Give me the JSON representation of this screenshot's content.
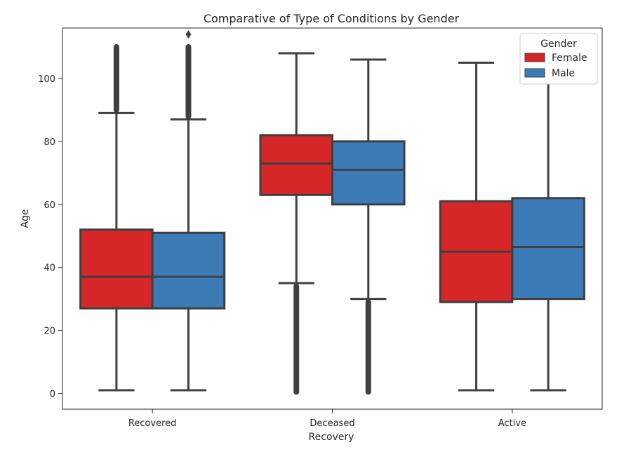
{
  "chart_data": {
    "type": "box",
    "title": "Comparative of Type of Conditions by Gender",
    "xlabel": "Recovery",
    "ylabel": "Age",
    "categories": [
      "Recovered",
      "Deceased",
      "Active"
    ],
    "ylim": [
      -5,
      116
    ],
    "yticks": [
      0,
      20,
      40,
      60,
      80,
      100
    ],
    "grid": false,
    "legend": {
      "title": "Gender",
      "placement": "top-right"
    },
    "series": [
      {
        "name": "Female",
        "color": "#d62628",
        "boxes": [
          {
            "category": "Recovered",
            "whisker_low": 1,
            "q1": 27,
            "median": 37,
            "q3": 52,
            "whisker_high": 89,
            "outliers_high": [
              90,
              110
            ]
          },
          {
            "category": "Deceased",
            "whisker_low": 35,
            "q1": 63,
            "median": 73,
            "q3": 82,
            "whisker_high": 108,
            "outliers_low": [
              0.5,
              34
            ]
          },
          {
            "category": "Active",
            "whisker_low": 1,
            "q1": 29,
            "median": 45,
            "q3": 61,
            "whisker_high": 105
          }
        ]
      },
      {
        "name": "Male",
        "color": "#3b7cb8",
        "boxes": [
          {
            "category": "Recovered",
            "whisker_low": 1,
            "q1": 27,
            "median": 37,
            "q3": 51,
            "whisker_high": 87,
            "outliers_high": [
              88,
              110,
              114
            ]
          },
          {
            "category": "Deceased",
            "whisker_low": 30,
            "q1": 60,
            "median": 71,
            "q3": 80,
            "whisker_high": 106,
            "outliers_low": [
              0.5,
              29
            ]
          },
          {
            "category": "Active",
            "whisker_low": 1,
            "q1": 30,
            "median": 46.5,
            "q3": 62,
            "whisker_high": 101
          }
        ]
      }
    ]
  }
}
